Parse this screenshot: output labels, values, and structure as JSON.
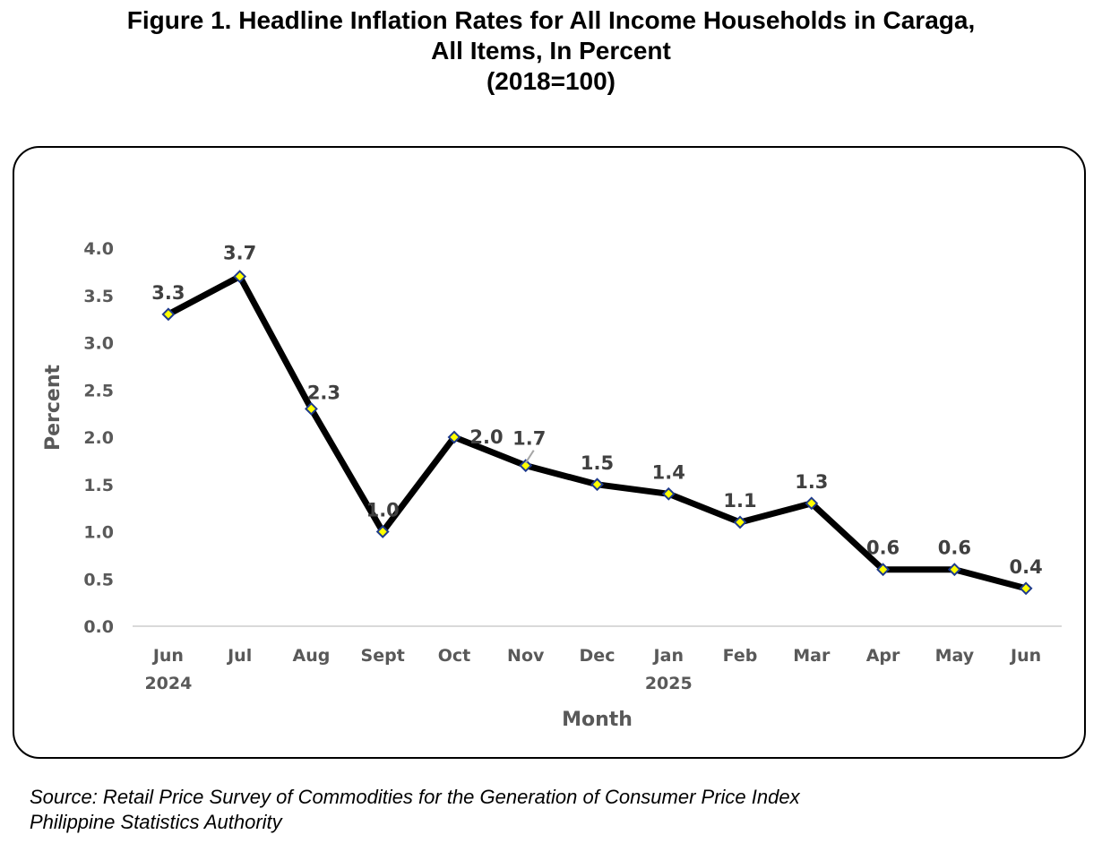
{
  "figure": {
    "title_lines": [
      "Figure 1. Headline Inflation Rates for All Income Households in Caraga,",
      "All Items, In Percent",
      "(2018=100)"
    ],
    "source_lines": [
      "Source: Retail Price Survey of Commodities for the Generation of Consumer Price Index",
      "Philippine Statistics Authority"
    ]
  },
  "chart_data": {
    "type": "line",
    "title": "Figure 1. Headline Inflation Rates for All Income Households in Caraga, All Items, In Percent (2018=100)",
    "categories": [
      "Jun 2024",
      "Jul",
      "Aug",
      "Sept",
      "Oct",
      "Nov",
      "Dec",
      "Jan 2025",
      "Feb",
      "Mar",
      "Apr",
      "May",
      "Jun"
    ],
    "category_lines": [
      [
        "Jun",
        "2024"
      ],
      [
        "Jul"
      ],
      [
        "Aug"
      ],
      [
        "Sept"
      ],
      [
        "Oct"
      ],
      [
        "Nov"
      ],
      [
        "Dec"
      ],
      [
        "Jan",
        "2025"
      ],
      [
        "Feb"
      ],
      [
        "Mar"
      ],
      [
        "Apr"
      ],
      [
        "May"
      ],
      [
        "Jun"
      ]
    ],
    "values": [
      3.3,
      3.7,
      2.3,
      1.0,
      2.0,
      1.7,
      1.5,
      1.4,
      1.1,
      1.3,
      0.6,
      0.6,
      0.4
    ],
    "data_labels": [
      "3.3",
      "3.7",
      "2.3",
      "1.0",
      "2.0",
      "1.7",
      "1.5",
      "1.4",
      "1.1",
      "1.3",
      "0.6",
      "0.6",
      "0.4"
    ],
    "xlabel": "Month",
    "ylabel": "Percent",
    "ylim": [
      0,
      4
    ],
    "yticks": [
      0,
      0.5,
      1,
      1.5,
      2,
      2.5,
      3,
      3.5,
      4
    ],
    "ytick_labels": [
      "0.0",
      "0.5",
      "1.0",
      "1.5",
      "2.0",
      "2.5",
      "3.0",
      "3.5",
      "4.0"
    ],
    "grid": false,
    "legend": "none",
    "colors": {
      "line": "#000000",
      "marker_fill": "#FFFF00",
      "marker_edge": "#1F3B8C",
      "axis_line": "#D9D9D9",
      "text": "#595959",
      "data_label": "#404040"
    }
  }
}
